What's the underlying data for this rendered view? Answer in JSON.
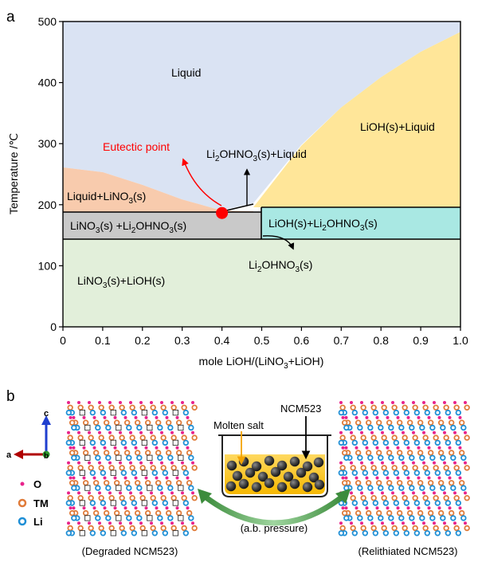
{
  "panel_a": {
    "letter": "a",
    "chart_data": {
      "type": "phase-diagram",
      "xlabel": "mole LiOH/(LiNO3+LiOH)",
      "ylabel": "Temperature /℃",
      "xlim": [
        0,
        1
      ],
      "ylim": [
        0,
        500
      ],
      "xticks": [
        "0",
        "0.1",
        "0.2",
        "0.3",
        "0.4",
        "0.5",
        "0.6",
        "0.7",
        "0.8",
        "0.9",
        "1.0"
      ],
      "yticks": [
        "0",
        "100",
        "200",
        "300",
        "400",
        "500"
      ],
      "regions": [
        {
          "label": "Liquid",
          "color": "#dae3f3"
        },
        {
          "label": "LiOH(s)+Liquid",
          "color": "#ffe699"
        },
        {
          "label": "Liquid+LiNO3(s)",
          "color": "#f8cbad"
        },
        {
          "label": "LiNO3(s) +Li2OHNO3(s)",
          "color": "#c9c9c9"
        },
        {
          "label": "LiOH(s)+Li2OHNO3(s)",
          "color": "#a9e8e3"
        },
        {
          "label": "LiNO3(s)+LiOH(s)",
          "color": "#e2efda"
        }
      ],
      "boundaries": {
        "left_liquidus": [
          [
            0,
            257
          ],
          [
            0.1,
            245
          ],
          [
            0.2,
            231
          ],
          [
            0.3,
            213
          ],
          [
            0.4,
            191
          ]
        ],
        "right_liquidus": [
          [
            0.48,
            192
          ],
          [
            0.6,
            271
          ],
          [
            0.7,
            332
          ],
          [
            0.8,
            386
          ],
          [
            0.9,
            436
          ],
          [
            1.0,
            478
          ]
        ],
        "horizontal_lines": [
          {
            "y": 186,
            "x_range": [
              0,
              0.5
            ]
          },
          {
            "y": 195,
            "x_range": [
              0.5,
              1.0
            ]
          },
          {
            "y": 142,
            "x_range": [
              0,
              1.0
            ]
          }
        ],
        "vertical_line": {
          "x": 0.5,
          "y_range": [
            142,
            195
          ]
        }
      },
      "eutectic_point": {
        "x": 0.4,
        "y": 189,
        "label": "Eutectic point",
        "color": "#ff0000"
      },
      "annotations": [
        "Li2OHNO3(s)+Liquid",
        "Li2OHNO3(s)"
      ]
    }
  },
  "panel_b": {
    "letter": "b",
    "axes": {
      "c": "c",
      "a": "a",
      "b": "b"
    },
    "legend": [
      {
        "label": "O",
        "color": "#e8238b"
      },
      {
        "label": "TM",
        "color": "#e07b39"
      },
      {
        "label": "Li",
        "color": "#1f8fd6"
      }
    ],
    "left_caption": "(Degraded NCM523)",
    "right_caption": "(Relithiated NCM523)",
    "molten_salt_label": "Molten salt",
    "ncm_label": "NCM523",
    "pressure_label": "(a.b. pressure)"
  }
}
